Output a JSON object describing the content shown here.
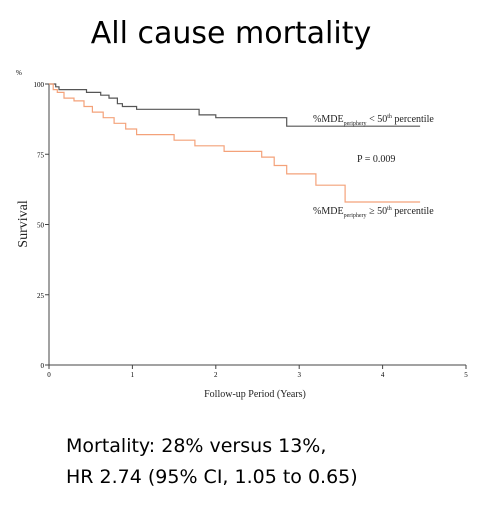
{
  "slide": {
    "title": "All cause mortality",
    "note_line1": "Mortality: 28% versus 13%,",
    "note_line2": "HR 2.74 (95% CI, 1.05 to 0.65)"
  },
  "chart_data": {
    "type": "line",
    "title": "",
    "xlabel": "Follow-up Period (Years)",
    "ylabel": "Survival",
    "yunit": "%",
    "xlim": [
      0,
      5
    ],
    "ylim": [
      0,
      100
    ],
    "xticks": [
      0,
      1,
      2,
      3,
      4,
      5
    ],
    "yticks": [
      0,
      25,
      50,
      75,
      100
    ],
    "grid": false,
    "annotations": {
      "pvalue": "P = 0.009"
    },
    "series": [
      {
        "name": "%MDE periphery < 50th percentile",
        "label_main": "%MDE",
        "label_sub": "periphery",
        "label_rel": "<",
        "label_num": "50",
        "label_sup": "th",
        "label_tail": "percentile",
        "color": "#555555",
        "x": [
          0,
          0.08,
          0.08,
          0.12,
          0.12,
          0.45,
          0.45,
          0.62,
          0.62,
          0.72,
          0.72,
          0.82,
          0.82,
          0.88,
          0.88,
          1.05,
          1.05,
          1.8,
          1.8,
          2.0,
          2.0,
          2.85,
          2.85,
          4.45
        ],
        "y": [
          100,
          100,
          99,
          99,
          98,
          98,
          97,
          97,
          96,
          96,
          95,
          95,
          93,
          93,
          92,
          92,
          91,
          91,
          89,
          89,
          88,
          88,
          85,
          85
        ]
      },
      {
        "name": "%MDE periphery ≥ 50th percentile",
        "label_main": "%MDE",
        "label_sub": "periphery",
        "label_rel": "≥",
        "label_num": "50",
        "label_sup": "th",
        "label_tail": "percentile",
        "color": "#f4a27a",
        "x": [
          0,
          0.05,
          0.05,
          0.1,
          0.1,
          0.18,
          0.18,
          0.3,
          0.3,
          0.42,
          0.42,
          0.52,
          0.52,
          0.65,
          0.65,
          0.78,
          0.78,
          0.92,
          0.92,
          1.05,
          1.05,
          1.5,
          1.5,
          1.75,
          1.75,
          2.1,
          2.1,
          2.55,
          2.55,
          2.7,
          2.7,
          2.85,
          2.85,
          3.2,
          3.2,
          3.55,
          3.55,
          4.05,
          4.05,
          4.45
        ],
        "y": [
          100,
          100,
          98,
          98,
          97,
          97,
          95,
          95,
          94,
          94,
          92,
          92,
          90,
          90,
          88,
          88,
          86,
          86,
          84,
          84,
          82,
          82,
          80,
          80,
          78,
          78,
          76,
          76,
          74,
          74,
          71,
          71,
          68,
          68,
          64,
          64,
          58,
          58,
          58,
          58
        ]
      }
    ]
  }
}
